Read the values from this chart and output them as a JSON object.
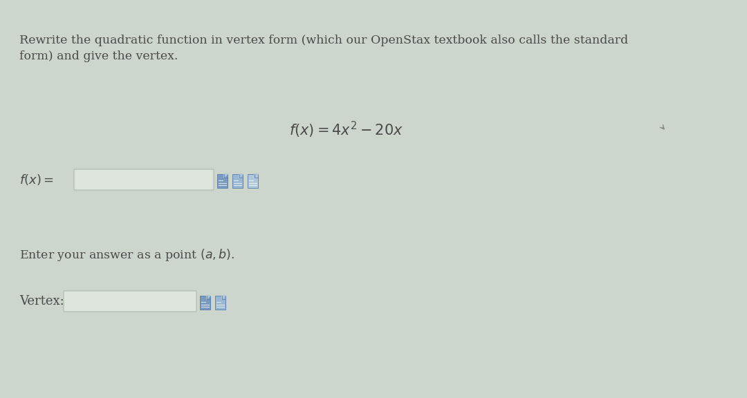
{
  "background_color": "#cdd6cd",
  "text_color": "#4a4a4a",
  "title_line1": "Rewrite the quadratic function in vertex form (which our OpenStax textbook also calls the standard",
  "title_line2": "form) and give the vertex.",
  "equation": "$f(x) = 4x^{2} - 20x$",
  "fx_label": "$f(x) =$",
  "enter_text": "Enter your answer as a point $(a, b)$.",
  "vertex_label": "Vertex:",
  "input_box_color": "#e8ede8",
  "input_box_border": "#aabbaa",
  "icon_color1": "#7a9bbf",
  "icon_color2": "#9ab8d4",
  "icon_color3": "#b0c8dc",
  "font_size_body": 12.5,
  "font_size_eq": 15,
  "font_size_label": 13
}
